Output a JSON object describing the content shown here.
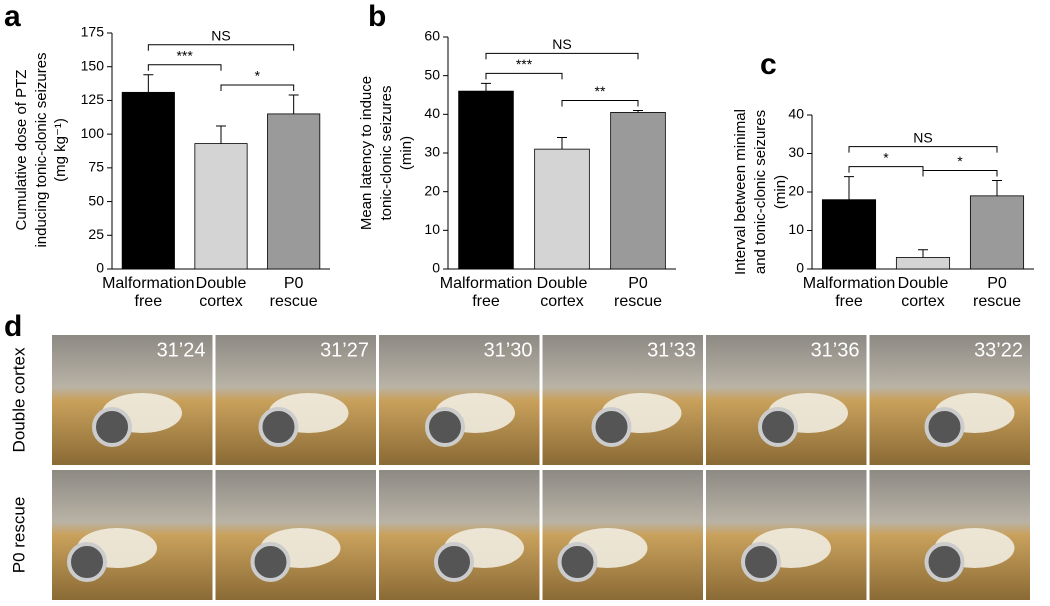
{
  "chart_data": [
    {
      "type": "bar",
      "panel_label": "a",
      "ylabel": [
        "Cumulative dose of PTZ",
        "inducing tonic-clonic seizures",
        "(mg kg⁻¹)"
      ],
      "categories": [
        "Malformation free",
        "Double cortex",
        "P0 rescue"
      ],
      "values": [
        131,
        93,
        115
      ],
      "errors": [
        13,
        13,
        14
      ],
      "colors": [
        "#000000",
        "#d4d4d4",
        "#9a9a9a"
      ],
      "ylim": [
        0,
        175
      ],
      "yticks": [
        0,
        25,
        50,
        75,
        100,
        125,
        150,
        175
      ],
      "comparisons": [
        {
          "between": [
            0,
            1
          ],
          "label": "***"
        },
        {
          "between": [
            1,
            2
          ],
          "label": "*"
        },
        {
          "between": [
            0,
            2
          ],
          "label": "NS"
        }
      ]
    },
    {
      "type": "bar",
      "panel_label": "b",
      "ylabel": [
        "Mean latency to induce",
        "tonic-clonic seizures",
        "(min)"
      ],
      "categories": [
        "Malformation free",
        "Double cortex",
        "P0 rescue"
      ],
      "values": [
        46,
        31,
        40.5
      ],
      "errors": [
        2,
        3,
        0.5
      ],
      "colors": [
        "#000000",
        "#d4d4d4",
        "#9a9a9a"
      ],
      "ylim": [
        0,
        60
      ],
      "yticks": [
        0,
        10,
        20,
        30,
        40,
        50,
        60
      ],
      "comparisons": [
        {
          "between": [
            0,
            1
          ],
          "label": "***"
        },
        {
          "between": [
            1,
            2
          ],
          "label": "**"
        },
        {
          "between": [
            0,
            2
          ],
          "label": "NS"
        }
      ]
    },
    {
      "type": "bar",
      "panel_label": "c",
      "ylabel": [
        "Interval between minimal",
        "and  tonic-clonic seizures",
        "(min)"
      ],
      "categories": [
        "Malformation free",
        "Double cortex",
        "P0 rescue"
      ],
      "values": [
        18,
        3,
        19
      ],
      "errors": [
        6,
        2,
        4
      ],
      "colors": [
        "#000000",
        "#d4d4d4",
        "#9a9a9a"
      ],
      "ylim": [
        0,
        40
      ],
      "yticks": [
        0,
        10,
        20,
        30,
        40
      ],
      "comparisons": [
        {
          "between": [
            0,
            1
          ],
          "label": "*"
        },
        {
          "between": [
            1,
            2
          ],
          "label": "*"
        },
        {
          "between": [
            0,
            2
          ],
          "label": "NS"
        }
      ]
    }
  ],
  "panel_d": {
    "panel_label": "d",
    "rows": [
      "Double cortex",
      "P0 rescue"
    ],
    "timestamps": [
      "31’24",
      "31’27",
      "31’30",
      "31’33",
      "31’36",
      "33’22"
    ]
  }
}
